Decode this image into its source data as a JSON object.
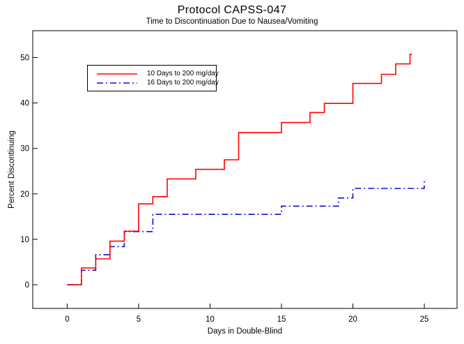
{
  "chart_data": {
    "type": "line",
    "subtype": "step-after",
    "title": "Protocol CAPSS-047",
    "subtitle": "Time to Discontinuation Due to Nausea/Vomiting",
    "xlabel": "Days in Double-Blind",
    "ylabel": "Percent Discontinuing",
    "xlim": [
      -2.41,
      27.29
    ],
    "ylim": [
      -5.2,
      55.9
    ],
    "xticks": [
      0,
      5,
      10,
      15,
      20,
      25
    ],
    "yticks": [
      0,
      10,
      20,
      30,
      40,
      50
    ],
    "grid": false,
    "frame": true,
    "axis_color": "#000000",
    "background_color": "#ffffff",
    "legend": {
      "position": "top-left-inside",
      "border": true
    },
    "series": [
      {
        "name": "10 Days to 200 mg/day",
        "color": "#ff0000",
        "dash": "solid",
        "points": [
          [
            0,
            0
          ],
          [
            1,
            3.7
          ],
          [
            2,
            5.7
          ],
          [
            3,
            9.6
          ],
          [
            4,
            11.8
          ],
          [
            5,
            17.8
          ],
          [
            6,
            19.4
          ],
          [
            7,
            23.3
          ],
          [
            9,
            25.4
          ],
          [
            11,
            27.5
          ],
          [
            12,
            33.5
          ],
          [
            15,
            35.7
          ],
          [
            17,
            37.9
          ],
          [
            18,
            39.9
          ],
          [
            20,
            44.3
          ],
          [
            22,
            46.3
          ],
          [
            23,
            48.6
          ],
          [
            24,
            50.7
          ]
        ]
      },
      {
        "name": "16 Days to 200 mg/day",
        "color": "#0d0dd8",
        "dash": "dash-dot",
        "points": [
          [
            0,
            0
          ],
          [
            1,
            3.2
          ],
          [
            2,
            6.6
          ],
          [
            3,
            8.4
          ],
          [
            4,
            11.7
          ],
          [
            6,
            15.5
          ],
          [
            15,
            17.3
          ],
          [
            19,
            19.1
          ],
          [
            20,
            21.2
          ],
          [
            25,
            23.0
          ]
        ]
      }
    ]
  }
}
